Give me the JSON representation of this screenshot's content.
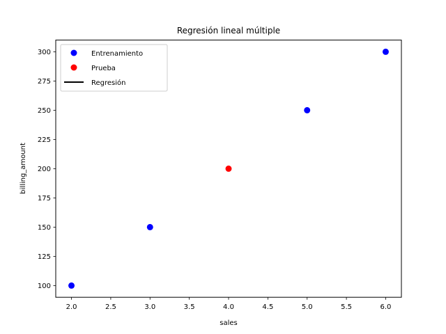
{
  "chart_data": {
    "type": "scatter",
    "title": "Regresión lineal múltiple",
    "xlabel": "sales",
    "ylabel": "billing_amount",
    "xlim": [
      1.8,
      6.2
    ],
    "ylim": [
      90,
      310
    ],
    "grid": false,
    "legend_position": "upper left",
    "x_ticks": [
      2.0,
      2.5,
      3.0,
      3.5,
      4.0,
      4.5,
      5.0,
      5.5,
      6.0
    ],
    "x_tick_labels": [
      "2.0",
      "2.5",
      "3.0",
      "3.5",
      "4.0",
      "4.5",
      "5.0",
      "5.5",
      "6.0"
    ],
    "y_ticks": [
      100,
      125,
      150,
      175,
      200,
      225,
      250,
      275,
      300
    ],
    "y_tick_labels": [
      "100",
      "125",
      "150",
      "175",
      "200",
      "225",
      "250",
      "275",
      "300"
    ],
    "series": [
      {
        "name": "Entrenamiento",
        "kind": "scatter",
        "color": "#0000ff",
        "x": [
          2,
          3,
          5,
          6
        ],
        "y": [
          100,
          150,
          250,
          300
        ]
      },
      {
        "name": "Prueba",
        "kind": "scatter",
        "color": "#ff0000",
        "x": [
          4
        ],
        "y": [
          200
        ]
      },
      {
        "name": "Regresión",
        "kind": "line",
        "color": "#000000",
        "x": [],
        "y": []
      }
    ]
  },
  "legend": {
    "items": [
      {
        "label": "Entrenamiento",
        "marker": "circle",
        "color": "#0000ff"
      },
      {
        "label": "Prueba",
        "marker": "circle",
        "color": "#ff0000"
      },
      {
        "label": "Regresión",
        "marker": "line",
        "color": "#000000"
      }
    ]
  }
}
